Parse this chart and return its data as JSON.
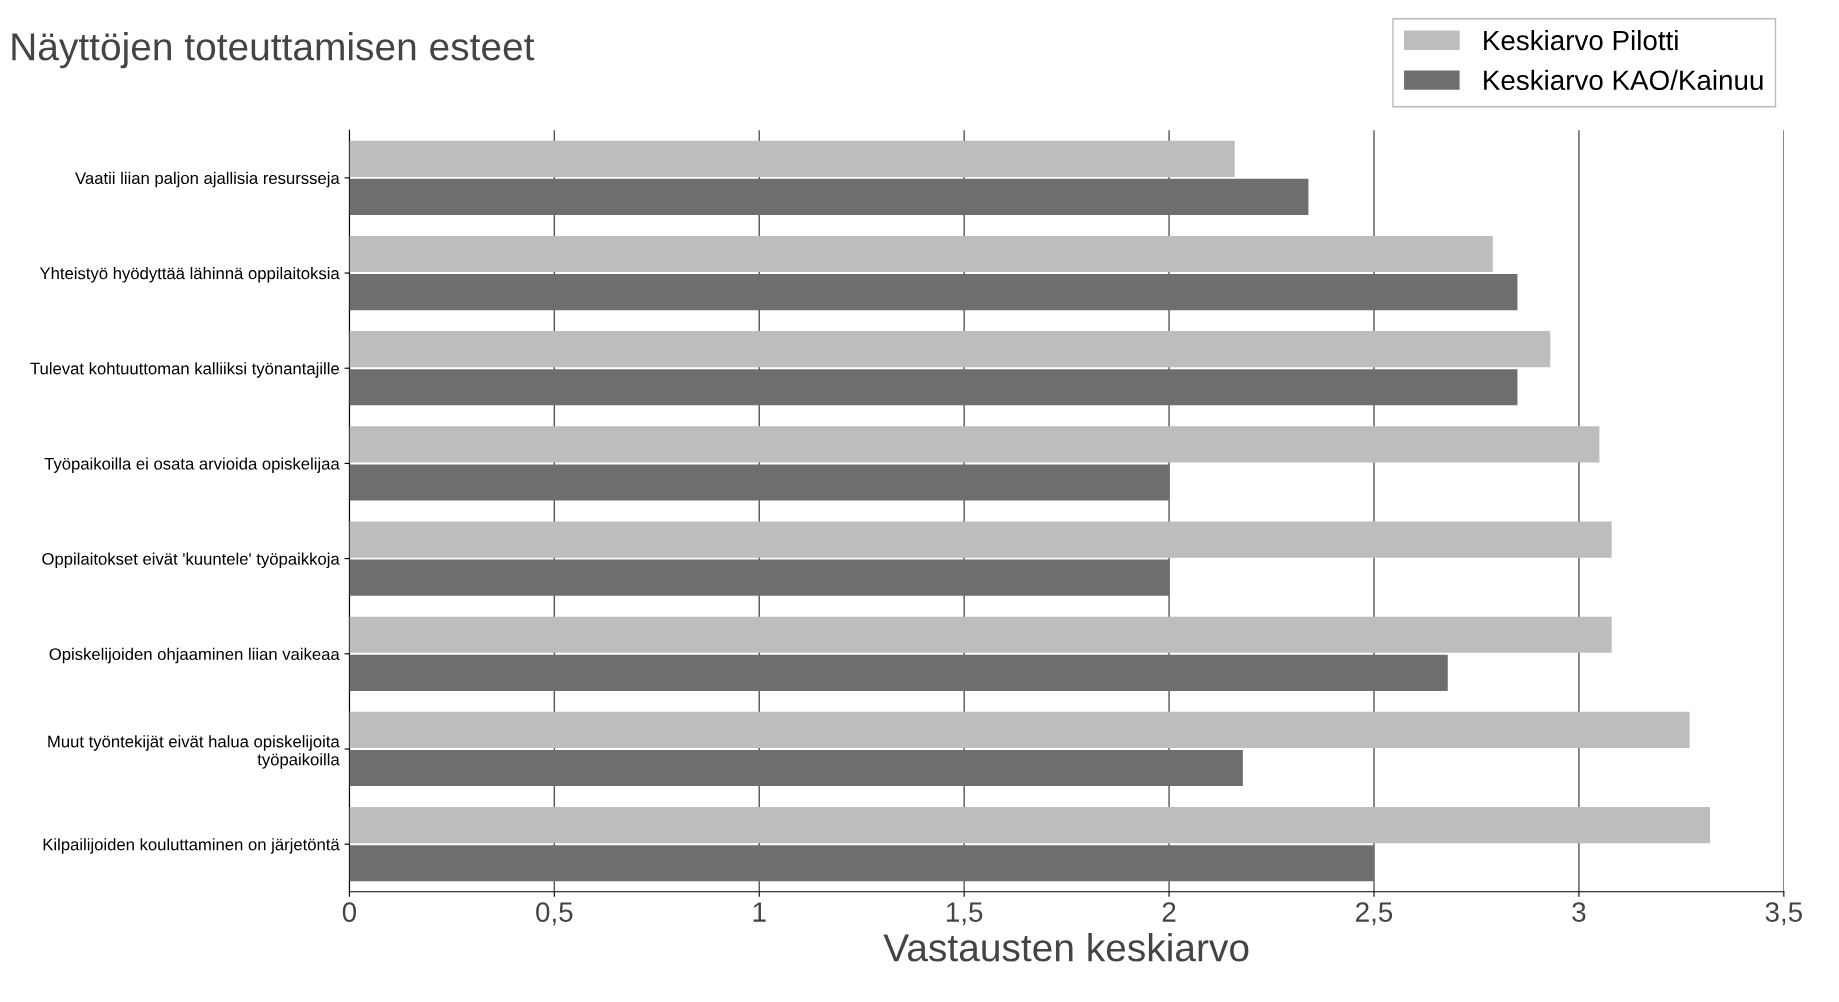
{
  "chart_data": {
    "type": "bar",
    "orientation": "horizontal",
    "title": "Näyttöjen toteuttamisen esteet",
    "xlabel": "Vastausten keskiarvo",
    "categories": [
      "Vaatii liian paljon ajallisia resursseja",
      "Yhteistyö hyödyttää lähinnä oppilaitoksia",
      "Tulevat kohtuuttoman kalliiksi työnantajille",
      "Työpaikoilla ei osata arvioida opiskelijaa",
      "Oppilaitokset eivät 'kuuntele' työpaikkoja",
      "Opiskelijoiden ohjaaminen liian vaikeaa",
      "Muut työntekijät eivät halua opiskelijoita\ntyöpaikoilla",
      "Kilpailijoiden kouluttaminen on järjetöntä"
    ],
    "series": [
      {
        "name": "Keskiarvo Pilotti",
        "color": "#bdbdbd",
        "values": [
          2.16,
          2.79,
          2.93,
          3.05,
          3.08,
          3.08,
          3.27,
          3.32
        ]
      },
      {
        "name": "Keskiarvo KAO/Kainuu",
        "color": "#6e6e6e",
        "values": [
          2.34,
          2.85,
          2.85,
          2.0,
          2.0,
          2.68,
          2.18,
          2.5
        ]
      }
    ],
    "xlim": [
      0,
      3.5
    ],
    "xticks": [
      0,
      {
        "value": 0.5,
        "label": "0,5"
      },
      1,
      {
        "value": 1.5,
        "label": "1,5"
      },
      2,
      {
        "value": 2.5,
        "label": "2,5"
      },
      3,
      {
        "value": 3.5,
        "label": "3,5"
      }
    ],
    "grid": "x",
    "legend": "top right"
  }
}
